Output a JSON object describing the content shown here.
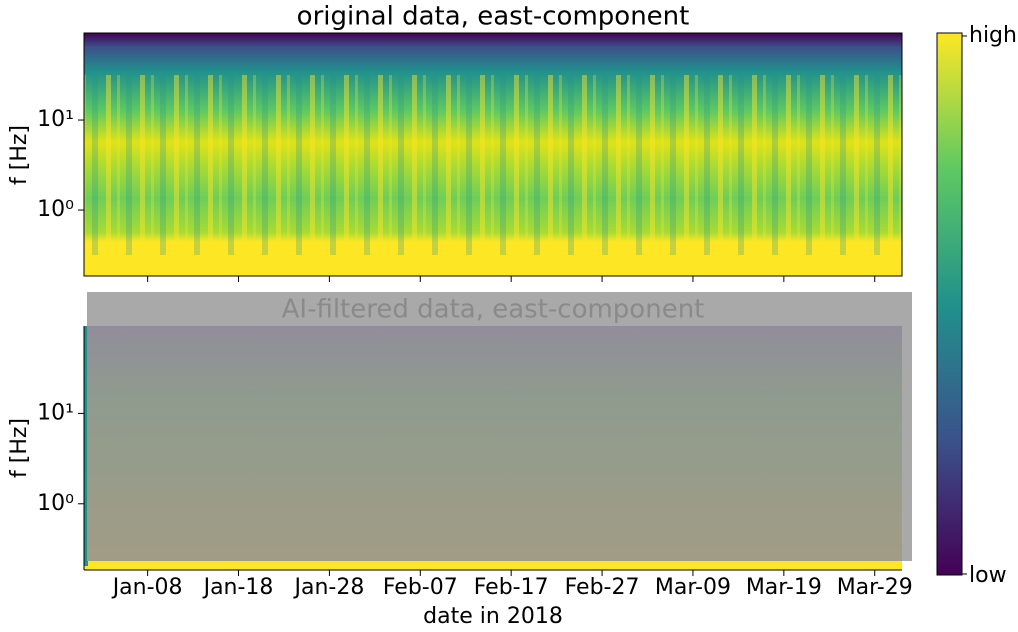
{
  "chart_data": [
    {
      "type": "heatmap",
      "title": "original data, east-component",
      "ylabel": "f [Hz]",
      "yscale": "log",
      "ylim": [
        0.185,
        92.7
      ],
      "yticks": [
        {
          "value": 1,
          "label": "10⁰"
        },
        {
          "value": 10,
          "label": "10¹"
        }
      ],
      "colormap": "viridis",
      "colorbar_labels": [
        "low",
        "high"
      ]
    },
    {
      "type": "heatmap",
      "title": "AI-filtered data, east-component",
      "ylabel": "f [Hz]",
      "yscale": "log",
      "ylim": [
        0.185,
        92.7
      ],
      "yticks": [
        {
          "value": 1,
          "label": "10⁰"
        },
        {
          "value": 10,
          "label": "10¹"
        }
      ],
      "xlabel": "date in 2018",
      "xlim": [
        1,
        91
      ],
      "xticks": [
        {
          "value": 8,
          "label": "Jan-08"
        },
        {
          "value": 18,
          "label": "Jan-18"
        },
        {
          "value": 28,
          "label": "Jan-28"
        },
        {
          "value": 38,
          "label": "Feb-07"
        },
        {
          "value": 48,
          "label": "Feb-17"
        },
        {
          "value": 58,
          "label": "Feb-27"
        },
        {
          "value": 68,
          "label": "Mar-09"
        },
        {
          "value": 78,
          "label": "Mar-19"
        },
        {
          "value": 88,
          "label": "Mar-29"
        }
      ],
      "overlay": true
    }
  ]
}
